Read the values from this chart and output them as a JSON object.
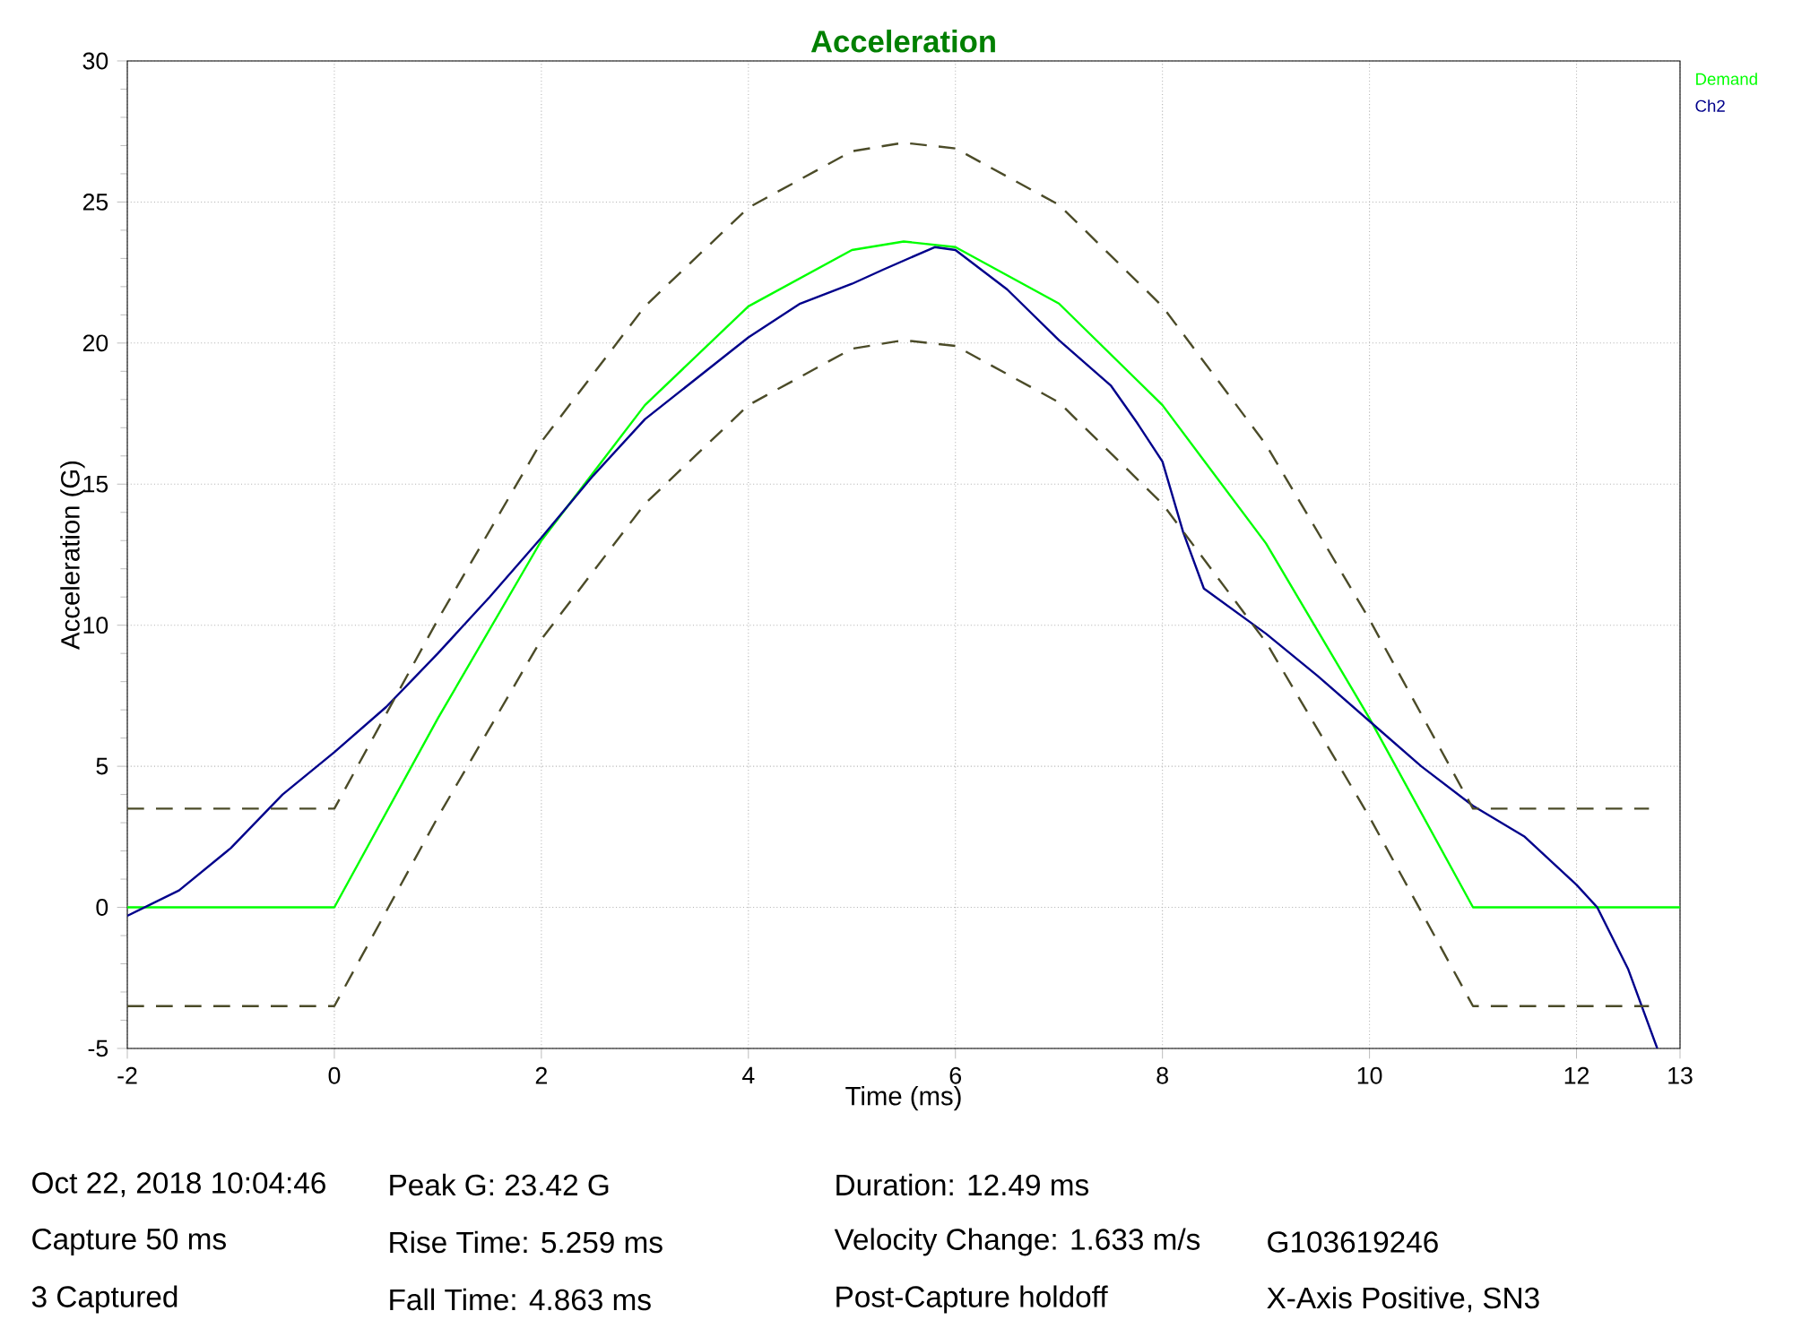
{
  "chart_data": {
    "type": "line",
    "title": "Acceleration",
    "xlabel": "Time (ms)",
    "ylabel": "Acceleration (G)",
    "xlim": [
      -2,
      13
    ],
    "ylim": [
      -5,
      30
    ],
    "xticks": [
      -2,
      0,
      2,
      4,
      6,
      8,
      10,
      12,
      13
    ],
    "yticks": [
      -5,
      0,
      5,
      10,
      15,
      20,
      25,
      30
    ],
    "grid": true,
    "legend": "top right",
    "line_style": "solid",
    "marker": "none",
    "series": [
      {
        "name": "Demand",
        "color": "#00ff00",
        "x": [
          -2,
          0,
          1,
          2,
          3,
          4,
          5,
          5.5,
          6,
          7,
          8,
          9,
          10,
          11,
          13
        ],
        "values": [
          0,
          0,
          6.7,
          13.0,
          17.8,
          21.3,
          23.3,
          23.6,
          23.4,
          21.4,
          17.8,
          12.9,
          6.7,
          0,
          0
        ]
      },
      {
        "name": "Ch2",
        "color": "#00008b",
        "x": [
          -2,
          -1.5,
          -1,
          -0.5,
          0,
          0.5,
          1,
          1.5,
          2,
          2.5,
          3,
          4,
          4.5,
          5,
          5.3,
          5.8,
          6,
          6.5,
          7,
          7.5,
          7.75,
          8,
          8.2,
          8.4,
          9,
          9.5,
          10,
          10.5,
          11,
          11.5,
          12,
          12.2,
          12.5,
          12.78
        ],
        "values": [
          -0.3,
          0.6,
          2.1,
          4.0,
          5.5,
          7.1,
          9.0,
          11.0,
          13.1,
          15.3,
          17.3,
          20.2,
          21.4,
          22.1,
          22.6,
          23.4,
          23.3,
          21.9,
          20.1,
          18.5,
          17.2,
          15.8,
          13.3,
          11.3,
          9.7,
          8.2,
          6.6,
          5.0,
          3.6,
          2.5,
          0.8,
          0,
          -2.2,
          -5
        ]
      },
      {
        "color": "#4b4b28",
        "line_style": "dashed",
        "x": [
          -2,
          0,
          1,
          2,
          3,
          4,
          5,
          5.5,
          6,
          7,
          8,
          9,
          10,
          11,
          12.7
        ],
        "values": [
          3.5,
          3.5,
          10.2,
          16.5,
          21.3,
          24.8,
          26.8,
          27.1,
          26.9,
          24.9,
          21.3,
          16.4,
          10.2,
          3.5,
          3.5
        ]
      },
      {
        "color": "#4b4b28",
        "line_style": "dashed",
        "x": [
          -2,
          0,
          1,
          2,
          3,
          4,
          5,
          5.5,
          6,
          7,
          8,
          9,
          10,
          11,
          12.7
        ],
        "values": [
          -3.5,
          -3.5,
          3.2,
          9.5,
          14.3,
          17.8,
          19.8,
          20.1,
          19.9,
          17.9,
          14.3,
          9.4,
          3.2,
          -3.5,
          -3.5
        ]
      }
    ],
    "annotations": [
      "Oct 22, 2018 10:04:46",
      "Capture 50 ms",
      "3 Captured",
      "Peak G: 23.42 G",
      "Rise Time: 5.259 ms",
      "Fall Time: 4.863 ms",
      "Duration: 12.49 ms",
      "Velocity Change: 1.633 m/s",
      "Post-Capture holdoff",
      "G103619246",
      "X-Axis Positive, SN3"
    ]
  }
}
